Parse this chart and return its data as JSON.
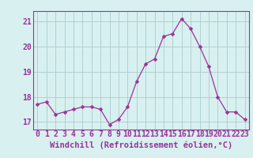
{
  "x": [
    0,
    1,
    2,
    3,
    4,
    5,
    6,
    7,
    8,
    9,
    10,
    11,
    12,
    13,
    14,
    15,
    16,
    17,
    18,
    19,
    20,
    21,
    22,
    23
  ],
  "y": [
    17.7,
    17.8,
    17.3,
    17.4,
    17.5,
    17.6,
    17.6,
    17.5,
    16.9,
    17.1,
    17.6,
    18.6,
    19.3,
    19.5,
    20.4,
    20.5,
    21.1,
    20.7,
    20.0,
    19.2,
    18.0,
    17.4,
    17.4,
    17.1
  ],
  "line_color": "#993399",
  "marker": "D",
  "marker_size": 2.5,
  "background_color": "#d8f0f0",
  "grid_color": "#aacccc",
  "axis_color": "#993399",
  "tick_color": "#993399",
  "xlabel": "Windchill (Refroidissement éolien,°C)",
  "ylim": [
    16.7,
    21.4
  ],
  "xlim": [
    -0.5,
    23.5
  ],
  "yticks": [
    17,
    18,
    19,
    20,
    21
  ],
  "xticks": [
    0,
    1,
    2,
    3,
    4,
    5,
    6,
    7,
    8,
    9,
    10,
    11,
    12,
    13,
    14,
    15,
    16,
    17,
    18,
    19,
    20,
    21,
    22,
    23
  ],
  "tick_fontsize": 7,
  "label_fontsize": 7.5
}
